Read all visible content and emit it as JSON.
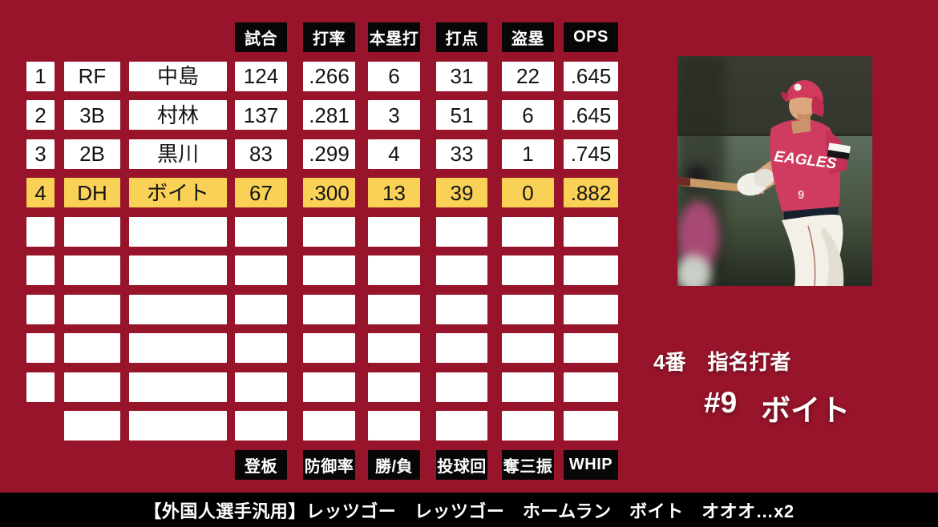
{
  "colors": {
    "background": "#98142B",
    "cell_bg": "#FFFFFF",
    "highlight_bg": "#F9D157",
    "header_bg": "#070707",
    "header_text": "#FFFFFF",
    "cell_text": "#141414",
    "caption_bg": "#000000",
    "caption_text": "#FFFFFF"
  },
  "table": {
    "top_headers": [
      "試合",
      "打率",
      "本塁打",
      "打点",
      "盗塁",
      "OPS"
    ],
    "bottom_headers": [
      "登板",
      "防御率",
      "勝/負",
      "投球回",
      "奪三振",
      "WHIP"
    ],
    "rows": [
      {
        "no": "1",
        "pos": "RF",
        "name": "中島",
        "stats": [
          "124",
          ".266",
          "6",
          "31",
          "22",
          ".645"
        ],
        "highlight": false,
        "has_order_cell": true
      },
      {
        "no": "2",
        "pos": "3B",
        "name": "村林",
        "stats": [
          "137",
          ".281",
          "3",
          "51",
          "6",
          ".645"
        ],
        "highlight": false,
        "has_order_cell": true
      },
      {
        "no": "3",
        "pos": "2B",
        "name": "黒川",
        "stats": [
          "83",
          ".299",
          "4",
          "33",
          "1",
          ".745"
        ],
        "highlight": false,
        "has_order_cell": true
      },
      {
        "no": "4",
        "pos": "DH",
        "name": "ボイト",
        "stats": [
          "67",
          ".300",
          "13",
          "39",
          "0",
          ".882"
        ],
        "highlight": true,
        "has_order_cell": true
      },
      {
        "no": "",
        "pos": "",
        "name": "",
        "stats": [
          "",
          "",
          "",
          "",
          "",
          ""
        ],
        "highlight": false,
        "has_order_cell": true
      },
      {
        "no": "",
        "pos": "",
        "name": "",
        "stats": [
          "",
          "",
          "",
          "",
          "",
          ""
        ],
        "highlight": false,
        "has_order_cell": true
      },
      {
        "no": "",
        "pos": "",
        "name": "",
        "stats": [
          "",
          "",
          "",
          "",
          "",
          ""
        ],
        "highlight": false,
        "has_order_cell": true
      },
      {
        "no": "",
        "pos": "",
        "name": "",
        "stats": [
          "",
          "",
          "",
          "",
          "",
          ""
        ],
        "highlight": false,
        "has_order_cell": true
      },
      {
        "no": "",
        "pos": "",
        "name": "",
        "stats": [
          "",
          "",
          "",
          "",
          "",
          ""
        ],
        "highlight": false,
        "has_order_cell": true
      },
      {
        "no": "",
        "pos": "",
        "name": "",
        "stats": [
          "",
          "",
          "",
          "",
          "",
          ""
        ],
        "highlight": false,
        "has_order_cell": false
      }
    ]
  },
  "right_panel": {
    "batting_order": "4番",
    "position_name": "指名打者",
    "jersey_number": "#9",
    "player_name": "ボイト"
  },
  "caption": {
    "text": "【外国人選手汎用】レッツゴー　レッツゴー　ホームラン　ボイト　オオオ…x2"
  }
}
